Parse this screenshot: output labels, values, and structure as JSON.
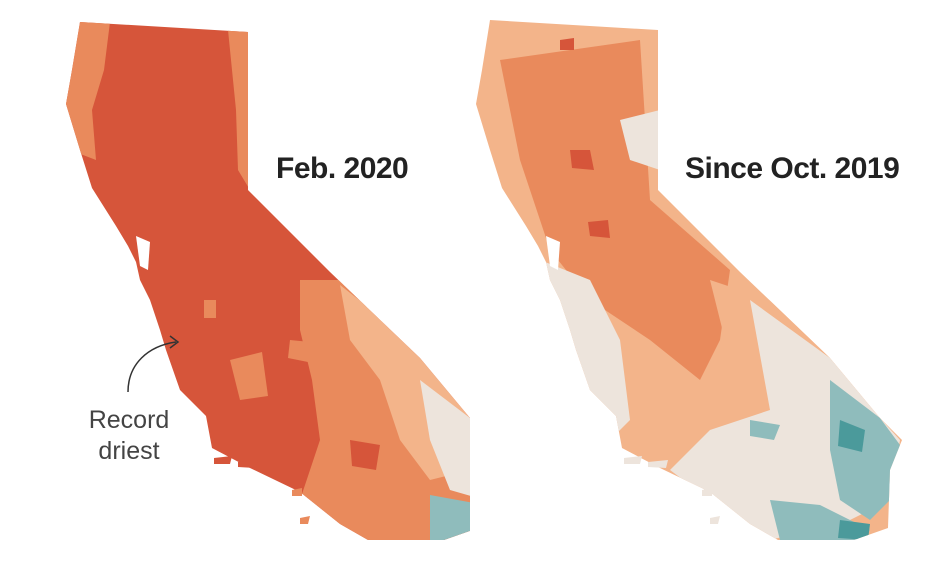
{
  "maps": {
    "left": {
      "title": "Feb. 2020"
    },
    "right": {
      "title": "Since Oct. 2019"
    }
  },
  "annotation": {
    "line1": "Record",
    "line2": "driest"
  },
  "colors": {
    "record_driest": "#d6553a",
    "very_dry": "#e98a5c",
    "dry": "#f3b48a",
    "near_normal": "#ede4dc",
    "wet": "#8fbcbc",
    "very_wet": "#4b9a9b",
    "text": "#222222"
  }
}
